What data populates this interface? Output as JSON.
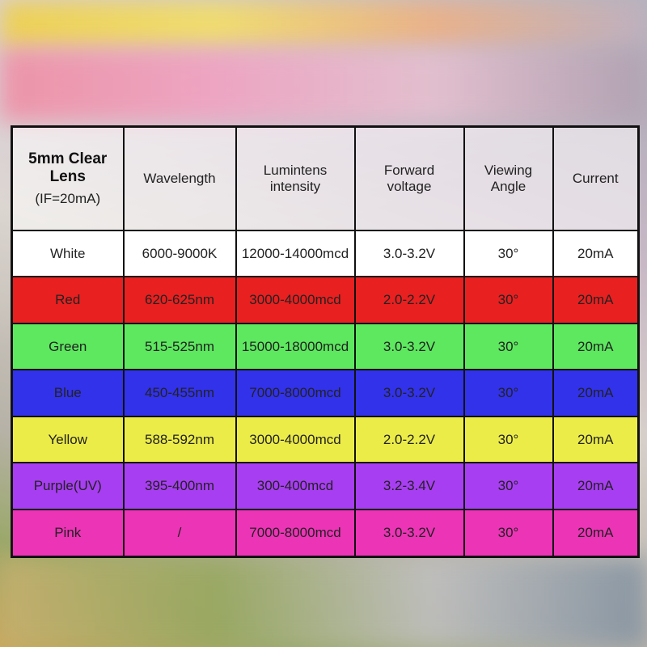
{
  "table": {
    "header": {
      "first": {
        "title": "5mm Clear Lens",
        "note": "(IF=20mA)"
      },
      "columns": [
        "Wavelength",
        "Lumintens intensity",
        "Forward voltage",
        "Viewing Angle",
        "Current"
      ]
    },
    "rows": [
      [
        "White",
        "6000-9000K",
        "12000-14000mcd",
        "3.0-3.2V",
        "30°",
        "20mA"
      ],
      [
        "Red",
        "620-625nm",
        "3000-4000mcd",
        "2.0-2.2V",
        "30°",
        "20mA"
      ],
      [
        "Green",
        "515-525nm",
        "15000-18000mcd",
        "3.0-3.2V",
        "30°",
        "20mA"
      ],
      [
        "Blue",
        "450-455nm",
        "7000-8000mcd",
        "3.0-3.2V",
        "30°",
        "20mA"
      ],
      [
        "Yellow",
        "588-592nm",
        "3000-4000mcd",
        "2.0-2.2V",
        "30°",
        "20mA"
      ],
      [
        "Purple(UV)",
        "395-400nm",
        "300-400mcd",
        "3.2-3.4V",
        "30°",
        "20mA"
      ],
      [
        "Pink",
        "/",
        "7000-8000mcd",
        "3.0-3.2V",
        "30°",
        "20mA"
      ]
    ]
  }
}
